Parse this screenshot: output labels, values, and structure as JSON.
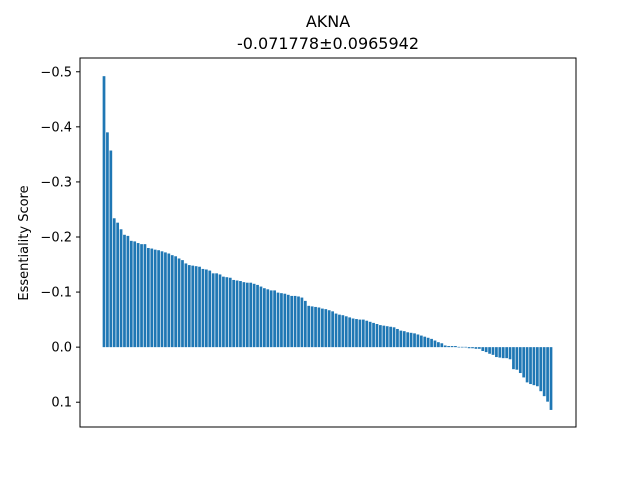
{
  "chart_data": {
    "type": "bar",
    "title": "AKNA",
    "subtitle": "-0.071778±0.0965942",
    "xlabel": "",
    "ylabel": "Essentiality Score",
    "y_inverted": true,
    "ylim": [
      0.145,
      -0.525
    ],
    "yticks": [
      -0.5,
      -0.4,
      -0.3,
      -0.2,
      -0.1,
      0.0,
      0.1
    ],
    "ytick_labels": [
      "−0.5",
      "−0.4",
      "−0.3",
      "−0.2",
      "−0.1",
      "0.0",
      "0.1"
    ],
    "grid": false,
    "bar_color": "#1f77b4",
    "values": [
      -0.492,
      -0.39,
      -0.357,
      -0.234,
      -0.226,
      -0.214,
      -0.204,
      -0.202,
      -0.193,
      -0.192,
      -0.189,
      -0.187,
      -0.187,
      -0.18,
      -0.179,
      -0.177,
      -0.176,
      -0.174,
      -0.172,
      -0.17,
      -0.167,
      -0.165,
      -0.161,
      -0.158,
      -0.152,
      -0.149,
      -0.148,
      -0.147,
      -0.146,
      -0.142,
      -0.141,
      -0.139,
      -0.134,
      -0.134,
      -0.132,
      -0.128,
      -0.127,
      -0.126,
      -0.122,
      -0.121,
      -0.12,
      -0.118,
      -0.117,
      -0.117,
      -0.115,
      -0.113,
      -0.11,
      -0.107,
      -0.105,
      -0.103,
      -0.103,
      -0.099,
      -0.098,
      -0.097,
      -0.095,
      -0.093,
      -0.093,
      -0.092,
      -0.09,
      -0.084,
      -0.075,
      -0.074,
      -0.073,
      -0.072,
      -0.07,
      -0.069,
      -0.067,
      -0.065,
      -0.061,
      -0.059,
      -0.058,
      -0.056,
      -0.054,
      -0.052,
      -0.051,
      -0.05,
      -0.05,
      -0.048,
      -0.046,
      -0.044,
      -0.042,
      -0.04,
      -0.039,
      -0.038,
      -0.037,
      -0.036,
      -0.033,
      -0.03,
      -0.029,
      -0.027,
      -0.026,
      -0.025,
      -0.023,
      -0.021,
      -0.019,
      -0.017,
      -0.015,
      -0.012,
      -0.009,
      -0.007,
      -0.003,
      -0.002,
      -0.002,
      -0.002,
      -0.001,
      0.0,
      0.001,
      0.002,
      0.002,
      0.003,
      0.003,
      0.007,
      0.009,
      0.012,
      0.014,
      0.018,
      0.019,
      0.02,
      0.02,
      0.022,
      0.04,
      0.041,
      0.047,
      0.055,
      0.064,
      0.067,
      0.069,
      0.071,
      0.08,
      0.089,
      0.099,
      0.114
    ]
  }
}
